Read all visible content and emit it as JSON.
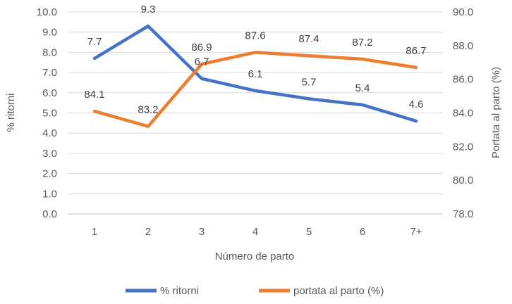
{
  "chart_data": {
    "type": "line",
    "title": "",
    "categories": [
      "1",
      "2",
      "3",
      "4",
      "5",
      "6",
      "7+"
    ],
    "xlabel": "Número de parto",
    "ylabel": "% ritorni",
    "y2label": "Portata al parto (%)",
    "ylim": [
      0,
      10
    ],
    "y2lim": [
      78,
      90
    ],
    "yticks": [
      "0.0",
      "1.0",
      "2.0",
      "3.0",
      "4.0",
      "5.0",
      "6.0",
      "7.0",
      "8.0",
      "9.0",
      "10.0"
    ],
    "y2ticks": [
      "78.0",
      "80.0",
      "82.0",
      "84.0",
      "86.0",
      "88.0",
      "90.0"
    ],
    "grid": true,
    "legend_position": "bottom",
    "series": [
      {
        "name": "% ritorni",
        "axis": "left",
        "color": "#4472C4",
        "values": [
          7.7,
          9.3,
          6.7,
          6.1,
          5.7,
          5.4,
          4.6
        ],
        "labels": [
          "7.7",
          "9.3",
          "6.7",
          "6.1",
          "5.7",
          "5.4",
          "4.6"
        ]
      },
      {
        "name": "portata al parto (%)",
        "axis": "right",
        "color": "#ED7D31",
        "values": [
          84.1,
          83.2,
          86.9,
          87.6,
          87.4,
          87.2,
          86.7
        ],
        "labels": [
          "84.1",
          "83.2",
          "86.9",
          "87.6",
          "87.4",
          "87.2",
          "86.7"
        ]
      }
    ]
  }
}
